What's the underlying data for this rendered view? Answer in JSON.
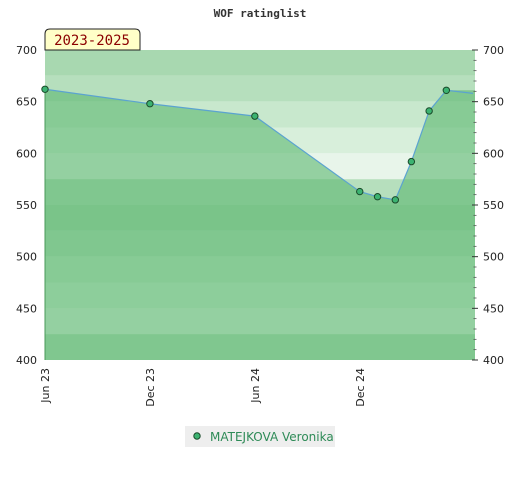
{
  "chart_data": {
    "type": "area",
    "title": "WOF ratinglist",
    "period_label": "2023-2025",
    "xlabel": "",
    "ylabel": "",
    "ylim": [
      400,
      700
    ],
    "yticks": [
      400,
      450,
      500,
      550,
      600,
      650,
      700
    ],
    "x_tick_labels": [
      "Jun 23",
      "Dec 23",
      "Jun 24",
      "Dec 24"
    ],
    "x_tick_dates": [
      "2023-06-01",
      "2023-12-01",
      "2024-06-01",
      "2024-12-01"
    ],
    "xlim": [
      "2023-06-01",
      "2025-06-20"
    ],
    "grid": true,
    "legend_position": "bottom-center",
    "series": [
      {
        "name": "MATEJKOVA Veronika",
        "color": "#5ba3d0",
        "marker_color": "#3cb371",
        "fill_color": "#5cb870",
        "points": [
          {
            "x": "2023-06-01",
            "y": 662
          },
          {
            "x": "2023-12-01",
            "y": 648
          },
          {
            "x": "2024-06-01",
            "y": 636
          },
          {
            "x": "2024-12-01",
            "y": 563
          },
          {
            "x": "2025-01-01",
            "y": 558
          },
          {
            "x": "2025-02-01",
            "y": 555
          },
          {
            "x": "2025-03-01",
            "y": 592
          },
          {
            "x": "2025-04-01",
            "y": 641
          },
          {
            "x": "2025-05-01",
            "y": 661
          }
        ]
      }
    ]
  }
}
